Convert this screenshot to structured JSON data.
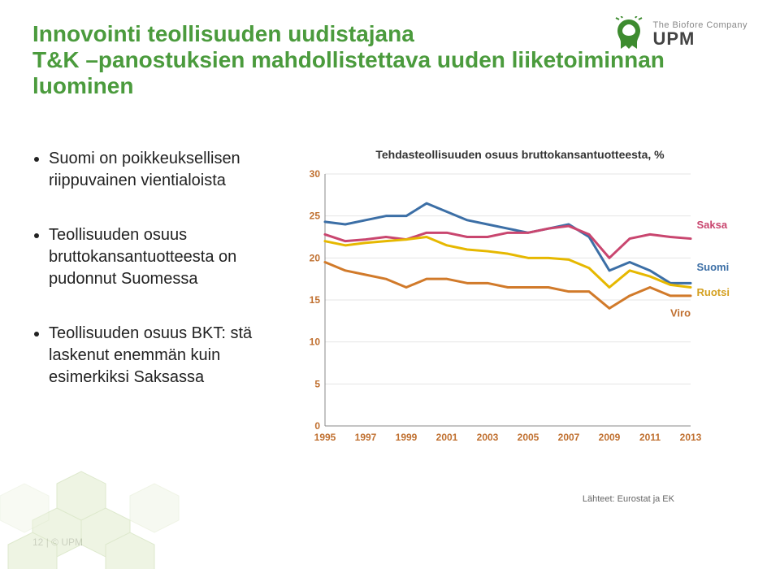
{
  "title": {
    "line1": "Innovointi teollisuuden uudistajana",
    "line2": "T&K –panostuksien mahdollistettava uuden liiketoiminnan luominen",
    "color": "#4b9b3d",
    "fontsize": 28
  },
  "logo": {
    "tagline": "The Biofore Company",
    "brand": "UPM",
    "griffin_color": "#3d8b2f"
  },
  "bullets": [
    "Suomi on poikkeuksellisen riippuvainen vientialoista",
    "Teollisuuden osuus bruttokansantuotteesta on pudonnut Suomessa",
    "Teollisuuden osuus BKT: stä laskenut enemmän kuin esimerkiksi Saksassa"
  ],
  "chart": {
    "title": "Tehdasteollisuuden osuus bruttokansantuotteesta, %",
    "type": "line",
    "xlim": [
      1995,
      2013
    ],
    "ylim": [
      0,
      30
    ],
    "xtick_step": 2,
    "ytick_step": 5,
    "x_ticks": [
      1995,
      1997,
      1999,
      2001,
      2003,
      2005,
      2007,
      2009,
      2011,
      2013
    ],
    "y_ticks": [
      0,
      5,
      10,
      15,
      20,
      25,
      30
    ],
    "background_color": "#ffffff",
    "grid_color": "#e5e5e5",
    "axis_color": "#888",
    "tick_fontsize": 12,
    "tick_color": "#c07030",
    "line_width": 3,
    "series": [
      {
        "name": "Suomi",
        "label": "Suomi",
        "color": "#3c6fa6",
        "label_color": "#3c6fa6",
        "values": [
          [
            1995,
            24.3
          ],
          [
            1996,
            24.0
          ],
          [
            1997,
            24.5
          ],
          [
            1998,
            25.0
          ],
          [
            1999,
            25.0
          ],
          [
            2000,
            26.5
          ],
          [
            2001,
            25.5
          ],
          [
            2002,
            24.5
          ],
          [
            2003,
            24.0
          ],
          [
            2004,
            23.5
          ],
          [
            2005,
            23.0
          ],
          [
            2006,
            23.5
          ],
          [
            2007,
            24.0
          ],
          [
            2008,
            22.5
          ],
          [
            2009,
            18.5
          ],
          [
            2010,
            19.5
          ],
          [
            2011,
            18.5
          ],
          [
            2012,
            17.0
          ],
          [
            2013,
            17.0
          ]
        ]
      },
      {
        "name": "Saksa",
        "label": "Saksa",
        "color": "#c9466f",
        "label_color": "#c9466f",
        "values": [
          [
            1995,
            22.8
          ],
          [
            1996,
            22.0
          ],
          [
            1997,
            22.2
          ],
          [
            1998,
            22.5
          ],
          [
            1999,
            22.2
          ],
          [
            2000,
            23.0
          ],
          [
            2001,
            23.0
          ],
          [
            2002,
            22.5
          ],
          [
            2003,
            22.5
          ],
          [
            2004,
            23.0
          ],
          [
            2005,
            23.0
          ],
          [
            2006,
            23.5
          ],
          [
            2007,
            23.8
          ],
          [
            2008,
            22.8
          ],
          [
            2009,
            20.0
          ],
          [
            2010,
            22.3
          ],
          [
            2011,
            22.8
          ],
          [
            2012,
            22.5
          ],
          [
            2013,
            22.3
          ]
        ]
      },
      {
        "name": "Ruotsi",
        "label": "Ruotsi",
        "color": "#e6b800",
        "label_color": "#d4a020",
        "values": [
          [
            1995,
            22.0
          ],
          [
            1996,
            21.5
          ],
          [
            1997,
            21.8
          ],
          [
            1998,
            22.0
          ],
          [
            1999,
            22.2
          ],
          [
            2000,
            22.5
          ],
          [
            2001,
            21.5
          ],
          [
            2002,
            21.0
          ],
          [
            2003,
            20.8
          ],
          [
            2004,
            20.5
          ],
          [
            2005,
            20.0
          ],
          [
            2006,
            20.0
          ],
          [
            2007,
            19.8
          ],
          [
            2008,
            18.8
          ],
          [
            2009,
            16.5
          ],
          [
            2010,
            18.5
          ],
          [
            2011,
            17.8
          ],
          [
            2012,
            16.8
          ],
          [
            2013,
            16.5
          ]
        ]
      },
      {
        "name": "Viro",
        "label": "Viro",
        "color": "#d17a2a",
        "label_color": "#c07030",
        "values": [
          [
            1995,
            19.5
          ],
          [
            1996,
            18.5
          ],
          [
            1997,
            18.0
          ],
          [
            1998,
            17.5
          ],
          [
            1999,
            16.5
          ],
          [
            2000,
            17.5
          ],
          [
            2001,
            17.5
          ],
          [
            2002,
            17.0
          ],
          [
            2003,
            17.0
          ],
          [
            2004,
            16.5
          ],
          [
            2005,
            16.5
          ],
          [
            2006,
            16.5
          ],
          [
            2007,
            16.0
          ],
          [
            2008,
            16.0
          ],
          [
            2009,
            14.0
          ],
          [
            2010,
            15.5
          ],
          [
            2011,
            16.5
          ],
          [
            2012,
            15.5
          ],
          [
            2013,
            15.5
          ]
        ]
      }
    ],
    "series_label_positions": {
      "Saksa": {
        "x": 2013.3,
        "y": 23.5
      },
      "Suomi": {
        "x": 2013.3,
        "y": 18.5
      },
      "Ruotsi": {
        "x": 2013.3,
        "y": 15.5
      },
      "Viro": {
        "x": 2012.0,
        "y": 13.0
      }
    },
    "label_fontsize": 13
  },
  "source": "Lähteet: Eurostat ja EK",
  "footer": {
    "page": "12",
    "copyright": "© UPM",
    "separator": " | "
  },
  "decor": {
    "hex_fill": "#e8f0d8",
    "hex_stroke": "#d0e0b8"
  }
}
